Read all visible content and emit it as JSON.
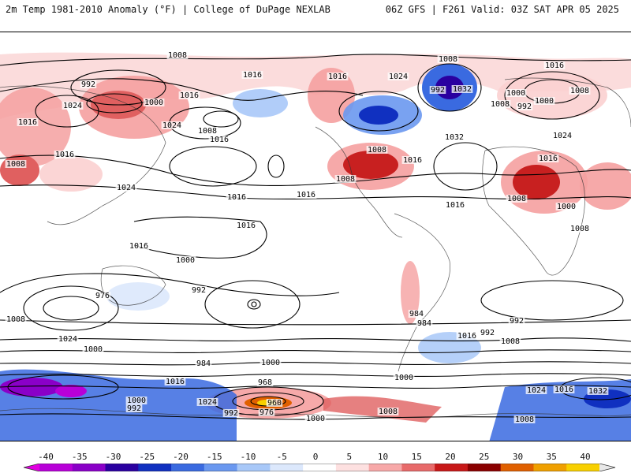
{
  "header": {
    "left_title": "2m Temp 1981-2010 Anomaly (°F) | College of DuPage NEXLAB",
    "right_title": "06Z GFS | F261 Valid: 03Z SAT APR 05 2025"
  },
  "isobar_labels": [
    "1008",
    "1016",
    "1016",
    "1024",
    "1008",
    "1016",
    "992",
    "1032",
    "992",
    "1000",
    "1008",
    "1016",
    "1000",
    "1024",
    "1000",
    "1016",
    "1032",
    "1024",
    "1008",
    "992",
    "1024",
    "1008",
    "1016",
    "1016",
    "1008",
    "1016",
    "1016",
    "1016",
    "1016",
    "1008",
    "1008",
    "1008",
    "1016",
    "1024",
    "1000",
    "1016",
    "1016",
    "1008",
    "1000",
    "984",
    "992",
    "1008",
    "976",
    "1024",
    "1016",
    "992",
    "984",
    "992",
    "1000",
    "1008",
    "1032",
    "1024",
    "1016",
    "1000",
    "968",
    "960",
    "976",
    "992",
    "1008",
    "1000",
    "984",
    "992",
    "1016",
    "1024",
    "1000",
    "1008",
    "1000"
  ],
  "colorbar": {
    "tick_labels": [
      "-40",
      "-35",
      "-30",
      "-25",
      "-20",
      "-15",
      "-10",
      "-5",
      "0",
      "5",
      "10",
      "15",
      "20",
      "25",
      "30",
      "35",
      "40"
    ],
    "colors": [
      "#e000e0",
      "#b800d8",
      "#8a00c8",
      "#2a00a0",
      "#1030c0",
      "#3a6ae0",
      "#6a98f0",
      "#a8c8f8",
      "#dce8fc",
      "#ffffff",
      "#fde0e0",
      "#f7a8a8",
      "#e86a6a",
      "#c81818",
      "#8a0000",
      "#e06000",
      "#f0a000",
      "#f8d000",
      "#e8e8e8"
    ]
  }
}
